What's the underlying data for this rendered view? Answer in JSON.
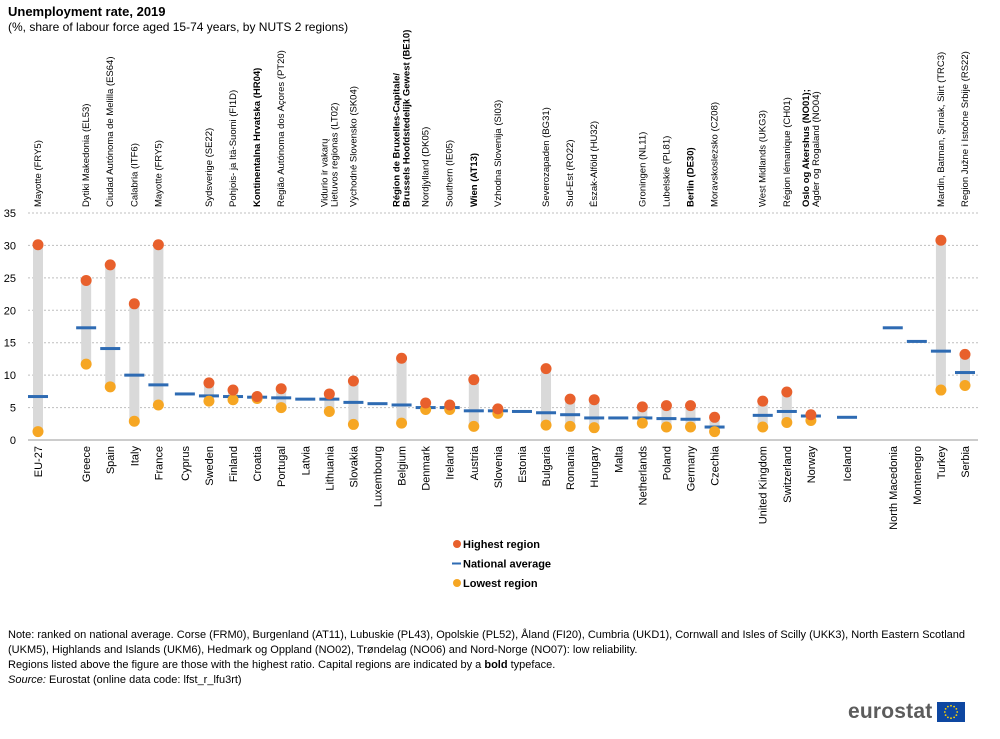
{
  "title": "Unemployment rate, 2019",
  "subtitle": "(%, share of labour force aged 15-74 years, by NUTS 2 regions)",
  "notes": {
    "line1": "Note: ranked on national average. Corse (FRM0), Burgenland (AT11), Lubuskie (PL43), Opolskie (PL52), Åland (FI20), Cumbria (UKD1), Cornwall and Isles of Scilly (UKK3), North Eastern Scotland (UKM5), Highlands and Islands (UKM6), Hedmark og Oppland (NO02), Trøndelag (NO06) and Nord-Norge (NO07): low reliability.",
    "line2_a": "Regions listed above the figure are those with the highest ratio. Capital regions are indicated by a ",
    "line2_bold": "bold",
    "line2_b": " typeface.",
    "source_label": "Source:",
    "source_text": " Eurostat (online data code: lfst_r_lfu3rt)"
  },
  "logo": {
    "text": "eurostat"
  },
  "colors": {
    "highest": "#e8602c",
    "lowest": "#f6a623",
    "average": "#2e6bb3",
    "range": "#d9d9d9",
    "grid": "#bfbfbf"
  },
  "chart_data": {
    "type": "range-dot",
    "ylim": [
      0,
      35
    ],
    "yticks": [
      0,
      5,
      10,
      15,
      20,
      25,
      30,
      35
    ],
    "grid": true,
    "legend": [
      {
        "key": "highest",
        "label": "Highest region"
      },
      {
        "key": "average",
        "label": "National average"
      },
      {
        "key": "lowest",
        "label": "Lowest region"
      }
    ],
    "categories": [
      {
        "name": "EU-27",
        "avg": 6.7,
        "high": 30.1,
        "low": 1.3,
        "regions": [
          {
            "t": "Mayotte (FRY5)",
            "b": false
          }
        ]
      },
      {
        "name": "Greece",
        "avg": 17.3,
        "high": 24.6,
        "low": 11.7,
        "regions": [
          {
            "t": "Dytiki Makedonia (EL53)",
            "b": false
          }
        ]
      },
      {
        "name": "Spain",
        "avg": 14.1,
        "high": 27.0,
        "low": 8.2,
        "regions": [
          {
            "t": "Ciudad Autónoma de Melilla (ES64)",
            "b": false
          }
        ]
      },
      {
        "name": "Italy",
        "avg": 10.0,
        "high": 21.0,
        "low": 2.9,
        "regions": [
          {
            "t": "Calabria (ITF6)",
            "b": false
          }
        ]
      },
      {
        "name": "France",
        "avg": 8.5,
        "high": 30.1,
        "low": 5.4,
        "regions": [
          {
            "t": "Mayotte (FRY5)",
            "b": false
          }
        ]
      },
      {
        "name": "Cyprus",
        "avg": 7.1,
        "high": null,
        "low": null,
        "regions": []
      },
      {
        "name": "Sweden",
        "avg": 6.8,
        "high": 8.8,
        "low": 6.0,
        "regions": [
          {
            "t": "Sydsverige (SE22)",
            "b": false
          }
        ]
      },
      {
        "name": "Finland",
        "avg": 6.7,
        "high": 7.7,
        "low": 6.2,
        "regions": [
          {
            "t": "Pohjois- ja Itä-Suomi (FI1D)",
            "b": false
          }
        ]
      },
      {
        "name": "Croatia",
        "avg": 6.6,
        "high": 6.7,
        "low": 6.4,
        "regions": [
          {
            "t": "Kontinentalna Hrvatska (HR04)",
            "b": true
          }
        ]
      },
      {
        "name": "Portugal",
        "avg": 6.5,
        "high": 7.9,
        "low": 5.0,
        "regions": [
          {
            "t": "Região Autónoma dos Açores (PT20)",
            "b": false
          }
        ]
      },
      {
        "name": "Latvia",
        "avg": 6.3,
        "high": null,
        "low": null,
        "regions": []
      },
      {
        "name": "Lithuania",
        "avg": 6.3,
        "high": 7.1,
        "low": 4.4,
        "regions": [
          {
            "t": "Vidurio ir vakarų",
            "b": false
          },
          {
            "t": "Lietuvos regionas (LT02)",
            "b": false
          }
        ]
      },
      {
        "name": "Slovakia",
        "avg": 5.8,
        "high": 9.1,
        "low": 2.4,
        "regions": [
          {
            "t": "Východné Slovensko (SK04)",
            "b": false
          }
        ]
      },
      {
        "name": "Luxembourg",
        "avg": 5.6,
        "high": null,
        "low": null,
        "regions": []
      },
      {
        "name": "Belgium",
        "avg": 5.4,
        "high": 12.6,
        "low": 2.6,
        "regions": [
          {
            "t": "Région de Bruxelles-Capitale/",
            "b": true
          },
          {
            "t": "Brussels Hoofdstedelijk Gewest (BE10)",
            "b": true
          }
        ]
      },
      {
        "name": "Denmark",
        "avg": 5.0,
        "high": 5.7,
        "low": 4.7,
        "regions": [
          {
            "t": "Nordjylland (DK05)",
            "b": false
          }
        ]
      },
      {
        "name": "Ireland",
        "avg": 5.0,
        "high": 5.4,
        "low": 4.7,
        "regions": [
          {
            "t": "Southern (IE05)",
            "b": false
          }
        ]
      },
      {
        "name": "Austria",
        "avg": 4.5,
        "high": 9.3,
        "low": 2.1,
        "regions": [
          {
            "t": "Wien (AT13)",
            "b": true
          }
        ]
      },
      {
        "name": "Slovenia",
        "avg": 4.5,
        "high": 4.8,
        "low": 4.1,
        "regions": [
          {
            "t": "Vzhodna Slovenija (SI03)",
            "b": false
          }
        ]
      },
      {
        "name": "Estonia",
        "avg": 4.4,
        "high": null,
        "low": null,
        "regions": []
      },
      {
        "name": "Bulgaria",
        "avg": 4.2,
        "high": 11.0,
        "low": 2.3,
        "regions": [
          {
            "t": "Severozapaden (BG31)",
            "b": false
          }
        ]
      },
      {
        "name": "Romania",
        "avg": 3.9,
        "high": 6.3,
        "low": 2.1,
        "regions": [
          {
            "t": "Sud-Est (RO22)",
            "b": false
          }
        ]
      },
      {
        "name": "Hungary",
        "avg": 3.4,
        "high": 6.2,
        "low": 1.9,
        "regions": [
          {
            "t": "Észak-Alföld (HU32)",
            "b": false
          }
        ]
      },
      {
        "name": "Malta",
        "avg": 3.4,
        "high": null,
        "low": null,
        "regions": []
      },
      {
        "name": "Netherlands",
        "avg": 3.4,
        "high": 5.1,
        "low": 2.6,
        "regions": [
          {
            "t": "Groningen (NL11)",
            "b": false
          }
        ]
      },
      {
        "name": "Poland",
        "avg": 3.3,
        "high": 5.3,
        "low": 2.0,
        "regions": [
          {
            "t": "Lubelskie (PL81)",
            "b": false
          }
        ]
      },
      {
        "name": "Germany",
        "avg": 3.2,
        "high": 5.3,
        "low": 2.0,
        "regions": [
          {
            "t": "Berlin (DE30)",
            "b": true
          }
        ]
      },
      {
        "name": "Czechia",
        "avg": 2.0,
        "high": 3.5,
        "low": 1.3,
        "regions": [
          {
            "t": "Moravskoslezsko (CZ08)",
            "b": false
          }
        ]
      },
      {
        "name": "United Kingdom",
        "avg": 3.8,
        "high": 6.0,
        "low": 2.0,
        "regions": [
          {
            "t": "West Midlands (UKG3)",
            "b": false
          }
        ]
      },
      {
        "name": "Switzerland",
        "avg": 4.4,
        "high": 7.4,
        "low": 2.7,
        "regions": [
          {
            "t": "Région lémanique (CH01)",
            "b": false
          }
        ]
      },
      {
        "name": "Norway",
        "avg": 3.7,
        "high": 3.9,
        "low": 3.0,
        "regions": [
          {
            "t": "Oslo og Akershus (NO01);",
            "b": true
          },
          {
            "t": "Agder og Rogaland (NO04)",
            "b": false
          }
        ]
      },
      {
        "name": "Iceland",
        "avg": 3.5,
        "high": null,
        "low": null,
        "regions": []
      },
      {
        "name": "North Macedonia",
        "avg": 17.3,
        "high": null,
        "low": null,
        "regions": []
      },
      {
        "name": "Montenegro",
        "avg": 15.2,
        "high": null,
        "low": null,
        "regions": []
      },
      {
        "name": "Turkey",
        "avg": 13.7,
        "high": 30.8,
        "low": 7.7,
        "regions": [
          {
            "t": "Mardin, Batman, Şırnak, Siirt (TRC3)",
            "b": false
          }
        ]
      },
      {
        "name": "Serbia",
        "avg": 10.4,
        "high": 13.2,
        "low": 8.4,
        "regions": [
          {
            "t": "Region Južne i Istočne Srbije (RS22)",
            "b": false
          }
        ]
      }
    ]
  }
}
